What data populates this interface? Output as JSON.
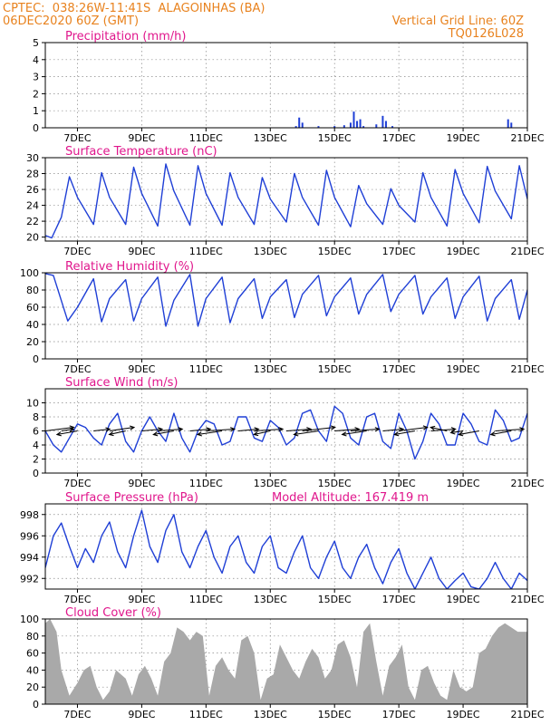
{
  "header": {
    "line1_left": "CPTEC:  038:26W-11:41S  ALAGOINHAS (BA)",
    "line2_left": "06DEC2020 60Z (GMT)",
    "line1_right": "Vertical Grid Line: 60Z",
    "line2_right": "TQ0126L028"
  },
  "colors": {
    "header": "#e8821e",
    "title": "#e0168c",
    "series": "#1f3fd6",
    "cloud": "#a9a9a9",
    "wind_arrow": "#000000"
  },
  "x_ticks": [
    "7DEC",
    "9DEC",
    "11DEC",
    "13DEC",
    "15DEC",
    "17DEC",
    "19DEC",
    "21DEC"
  ],
  "chart_data": [
    {
      "type": "bar",
      "title": "Precipitation (mm/h)",
      "ylim": [
        0,
        5
      ],
      "yticks": [
        "0",
        "1",
        "2",
        "3",
        "4",
        "5"
      ],
      "x": [
        13.8,
        13.9,
        14.0,
        14.5,
        15.0,
        15.3,
        15.5,
        15.6,
        15.7,
        15.8,
        15.9,
        16.3,
        16.5,
        16.6,
        16.8,
        20.4,
        20.5
      ],
      "values": [
        0.1,
        0.6,
        0.3,
        0.1,
        0.1,
        0.15,
        0.3,
        0.95,
        0.4,
        0.5,
        0.1,
        0.2,
        0.7,
        0.4,
        0.1,
        0.5,
        0.3
      ]
    },
    {
      "type": "line",
      "title": "Surface Temperature (nC)",
      "ylim": [
        19.5,
        30
      ],
      "yticks": [
        "20",
        "22",
        "24",
        "26",
        "28",
        "30"
      ],
      "x": [
        6.0,
        6.2,
        6.5,
        6.75,
        7.0,
        7.5,
        7.75,
        8.0,
        8.5,
        8.75,
        9.0,
        9.5,
        9.75,
        10.0,
        10.5,
        10.75,
        11.0,
        11.5,
        11.75,
        12.0,
        12.5,
        12.75,
        13.0,
        13.5,
        13.75,
        14.0,
        14.5,
        14.75,
        15.0,
        15.5,
        15.75,
        16.0,
        16.5,
        16.75,
        17.0,
        17.5,
        17.75,
        18.0,
        18.5,
        18.75,
        19.0,
        19.5,
        19.75,
        20.0,
        20.5,
        20.75,
        21.0
      ],
      "values": [
        20.2,
        19.9,
        22.5,
        27.6,
        25.0,
        21.6,
        28.1,
        25.0,
        21.6,
        28.8,
        25.5,
        21.4,
        29.2,
        25.8,
        21.5,
        29.0,
        25.5,
        21.5,
        28.1,
        25.0,
        21.6,
        27.5,
        24.8,
        21.9,
        28.0,
        25.0,
        21.5,
        28.4,
        25.0,
        21.3,
        26.5,
        24.2,
        21.6,
        26.1,
        24.0,
        21.9,
        28.1,
        25.0,
        21.4,
        28.5,
        25.5,
        21.8,
        28.9,
        25.8,
        22.3,
        29.0,
        24.8
      ]
    },
    {
      "type": "line",
      "title": "Relative Humidity (%)",
      "ylim": [
        0,
        100
      ],
      "yticks": [
        "0",
        "20",
        "40",
        "60",
        "80",
        "100"
      ],
      "x": [
        6.0,
        6.25,
        6.7,
        7.0,
        7.5,
        7.75,
        8.0,
        8.5,
        8.75,
        9.0,
        9.5,
        9.75,
        10.0,
        10.5,
        10.75,
        11.0,
        11.5,
        11.75,
        12.0,
        12.5,
        12.75,
        13.0,
        13.5,
        13.75,
        14.0,
        14.5,
        14.75,
        15.0,
        15.5,
        15.75,
        16.0,
        16.5,
        16.75,
        17.0,
        17.5,
        17.75,
        18.0,
        18.5,
        18.75,
        19.0,
        19.5,
        19.75,
        20.0,
        20.5,
        20.75,
        21.0
      ],
      "values": [
        99,
        97,
        44,
        60,
        93,
        43,
        70,
        92,
        44,
        70,
        95,
        38,
        68,
        98,
        38,
        70,
        95,
        42,
        70,
        93,
        47,
        72,
        92,
        48,
        75,
        97,
        50,
        72,
        94,
        52,
        75,
        98,
        55,
        75,
        97,
        52,
        72,
        94,
        47,
        72,
        96,
        44,
        70,
        92,
        46,
        80
      ]
    },
    {
      "type": "line",
      "title": "Surface Wind (m/s)",
      "ylim": [
        0,
        12
      ],
      "yticks": [
        "0",
        "2",
        "4",
        "6",
        "8",
        "10"
      ],
      "x": [
        6.0,
        6.25,
        6.5,
        6.75,
        7.0,
        7.25,
        7.5,
        7.75,
        8.0,
        8.25,
        8.5,
        8.75,
        9.0,
        9.25,
        9.5,
        9.75,
        10.0,
        10.25,
        10.5,
        10.75,
        11.0,
        11.25,
        11.5,
        11.75,
        12.0,
        12.25,
        12.5,
        12.75,
        13.0,
        13.25,
        13.5,
        13.75,
        14.0,
        14.25,
        14.5,
        14.75,
        15.0,
        15.25,
        15.5,
        15.75,
        16.0,
        16.25,
        16.5,
        16.75,
        17.0,
        17.25,
        17.5,
        17.75,
        18.0,
        18.25,
        18.5,
        18.75,
        19.0,
        19.25,
        19.5,
        19.75,
        20.0,
        20.25,
        20.5,
        20.75,
        21.0
      ],
      "values": [
        6.0,
        4.0,
        3.0,
        5.0,
        7.0,
        6.5,
        5.0,
        4.0,
        7.0,
        8.5,
        4.5,
        3.0,
        6.0,
        8.0,
        6.0,
        4.5,
        8.5,
        5.0,
        3.0,
        6.0,
        7.5,
        7.0,
        4.0,
        4.5,
        8.0,
        8.0,
        5.0,
        4.5,
        7.5,
        6.5,
        4.0,
        5.0,
        8.5,
        9.0,
        6.0,
        4.5,
        9.5,
        8.5,
        5.0,
        4.0,
        8.0,
        8.5,
        4.5,
        3.5,
        8.5,
        6.0,
        2.0,
        4.5,
        8.5,
        7.0,
        4.0,
        4.0,
        8.5,
        7.0,
        4.5,
        4.0,
        9.0,
        7.5,
        4.5,
        5.0,
        8.5
      ],
      "arrows": {
        "x": [
          6.0,
          6.5,
          7.0,
          7.5,
          8.0,
          8.5,
          9.0,
          9.5,
          10.0,
          10.5,
          11.0,
          11.5,
          12.0,
          12.5,
          13.0,
          13.5,
          14.0,
          14.5,
          15.0,
          15.5,
          16.0,
          16.5,
          17.0,
          17.5,
          18.0,
          18.5,
          19.0,
          19.5,
          20.0,
          20.5
        ],
        "u": [
          3.5,
          1.5,
          -2.5,
          2.0,
          3.0,
          -2.0,
          2.5,
          3.0,
          -2.5,
          2.5,
          3.5,
          -3.0,
          2.5,
          3.5,
          -2.0,
          3.0,
          4.0,
          -3.0,
          3.0,
          3.5,
          -3.0,
          2.5,
          3.5,
          -2.5,
          3.0,
          -2.0,
          -1.5,
          -2.5,
          3.5,
          -2.5
        ],
        "v": [
          -1.0,
          -0.5,
          1.0,
          -0.5,
          -1.0,
          1.0,
          -0.5,
          -0.5,
          1.0,
          -0.5,
          -0.5,
          1.0,
          -0.5,
          -0.5,
          1.0,
          -0.5,
          -1.0,
          1.0,
          -0.5,
          -0.5,
          1.0,
          -0.5,
          -1.0,
          1.0,
          -0.5,
          -1.0,
          0.5,
          1.0,
          -0.5,
          1.0
        ]
      }
    },
    {
      "type": "line",
      "title": "Surface Pressure (hPa)",
      "annotation": "Model Altitude: 167.419 m",
      "ylim": [
        991,
        999
      ],
      "yticks": [
        "992",
        "994",
        "996",
        "998"
      ],
      "x": [
        6.0,
        6.25,
        6.5,
        6.75,
        7.0,
        7.25,
        7.5,
        7.75,
        8.0,
        8.25,
        8.5,
        8.75,
        9.0,
        9.25,
        9.5,
        9.75,
        10.0,
        10.25,
        10.5,
        10.75,
        11.0,
        11.25,
        11.5,
        11.75,
        12.0,
        12.25,
        12.5,
        12.75,
        13.0,
        13.25,
        13.5,
        13.75,
        14.0,
        14.25,
        14.5,
        14.75,
        15.0,
        15.25,
        15.5,
        15.75,
        16.0,
        16.25,
        16.5,
        16.75,
        17.0,
        17.25,
        17.5,
        17.75,
        18.0,
        18.25,
        18.5,
        18.75,
        19.0,
        19.25,
        19.5,
        19.75,
        20.0,
        20.25,
        20.5,
        20.75,
        21.0
      ],
      "values": [
        993.0,
        996.0,
        997.2,
        995.0,
        993.0,
        994.8,
        993.5,
        996.0,
        997.3,
        994.5,
        993.0,
        996.0,
        998.4,
        995.0,
        993.5,
        996.5,
        998.0,
        994.5,
        993.0,
        995.0,
        996.5,
        994.0,
        992.5,
        995.0,
        996.0,
        993.5,
        992.5,
        995.0,
        996.0,
        993.0,
        992.5,
        994.5,
        996.0,
        993.0,
        992.0,
        994.0,
        995.5,
        993.0,
        992.0,
        994.0,
        995.2,
        993.0,
        991.5,
        993.5,
        994.8,
        992.5,
        991.0,
        992.5,
        994.0,
        992.0,
        991.0,
        991.8,
        992.5,
        991.2,
        991.0,
        992.0,
        993.5,
        992.0,
        991.0,
        992.5,
        991.8
      ]
    },
    {
      "type": "area",
      "title": "Cloud Cover (%)",
      "ylim": [
        0,
        100
      ],
      "yticks": [
        "0",
        "20",
        "40",
        "60",
        "80",
        "100"
      ],
      "x": [
        6.0,
        6.15,
        6.35,
        6.5,
        6.75,
        7.0,
        7.2,
        7.4,
        7.6,
        7.8,
        8.0,
        8.2,
        8.5,
        8.7,
        8.9,
        9.1,
        9.3,
        9.5,
        9.7,
        9.9,
        10.1,
        10.3,
        10.5,
        10.7,
        10.9,
        11.1,
        11.3,
        11.5,
        11.7,
        11.9,
        12.1,
        12.3,
        12.5,
        12.7,
        12.9,
        13.1,
        13.3,
        13.5,
        13.7,
        13.9,
        14.1,
        14.3,
        14.5,
        14.7,
        14.9,
        15.1,
        15.3,
        15.5,
        15.7,
        15.9,
        16.1,
        16.3,
        16.5,
        16.7,
        16.9,
        17.1,
        17.3,
        17.5,
        17.7,
        17.9,
        18.1,
        18.3,
        18.5,
        18.7,
        18.9,
        19.1,
        19.3,
        19.5,
        19.7,
        19.9,
        20.1,
        20.3,
        20.5,
        20.7,
        21.0
      ],
      "values": [
        95,
        100,
        85,
        40,
        10,
        25,
        40,
        45,
        20,
        5,
        15,
        40,
        30,
        10,
        35,
        45,
        30,
        10,
        50,
        60,
        90,
        85,
        75,
        85,
        80,
        10,
        45,
        55,
        40,
        30,
        75,
        80,
        60,
        5,
        30,
        35,
        70,
        55,
        40,
        30,
        50,
        65,
        55,
        30,
        40,
        70,
        75,
        55,
        20,
        85,
        95,
        50,
        10,
        45,
        55,
        70,
        20,
        5,
        40,
        45,
        25,
        10,
        5,
        40,
        20,
        15,
        20,
        60,
        65,
        80,
        90,
        95,
        90,
        85,
        85
      ]
    }
  ]
}
